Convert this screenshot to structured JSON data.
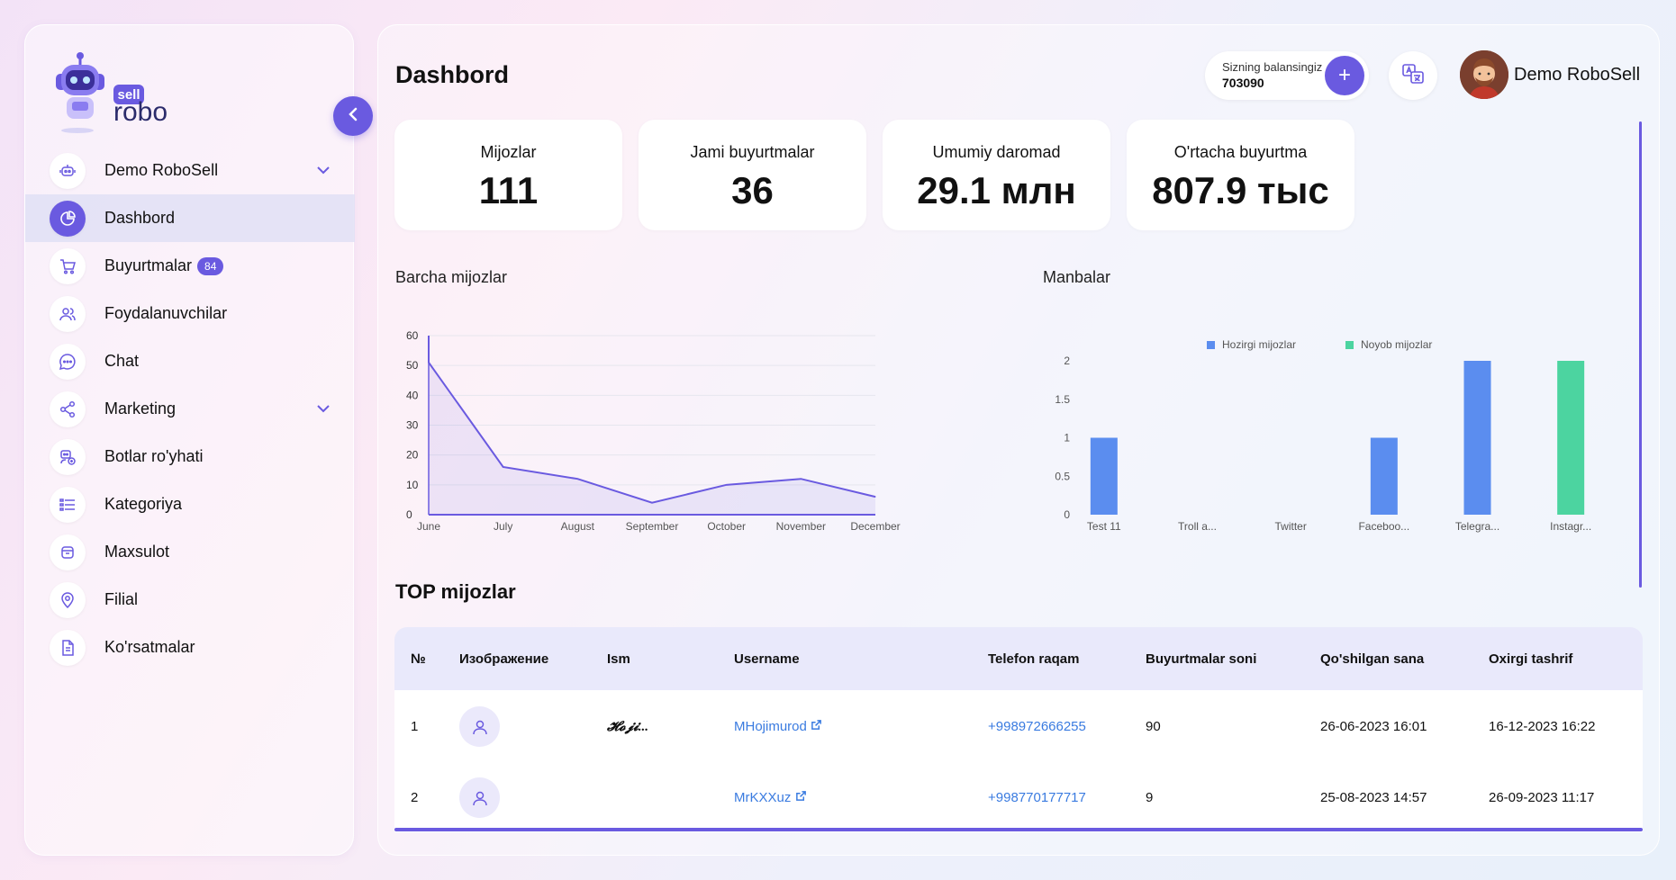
{
  "brand": {
    "logo_small": "sell",
    "logo_big": "robo"
  },
  "sidebar": {
    "items": [
      {
        "label": "Demo RoboSell",
        "icon": "robot-icon",
        "has_chevron": true
      },
      {
        "label": "Dashbord",
        "icon": "pie-chart-icon",
        "active": true
      },
      {
        "label": "Buyurtmalar",
        "icon": "cart-icon",
        "badge": "84"
      },
      {
        "label": "Foydalanuvchilar",
        "icon": "users-icon"
      },
      {
        "label": "Chat",
        "icon": "chat-icon"
      },
      {
        "label": "Marketing",
        "icon": "share-icon",
        "has_chevron": true
      },
      {
        "label": "Botlar ro'yhati",
        "icon": "bot-list-icon"
      },
      {
        "label": "Kategoriya",
        "icon": "list-icon"
      },
      {
        "label": "Maxsulot",
        "icon": "box-icon"
      },
      {
        "label": "Filial",
        "icon": "location-icon"
      },
      {
        "label": "Ko'rsatmalar",
        "icon": "document-icon"
      }
    ]
  },
  "header": {
    "title": "Dashbord",
    "balance_label": "Sizning balansingiz",
    "balance_value": "703090",
    "add_label": "+",
    "user_name": "Demo RoboSell"
  },
  "stats": [
    {
      "label": "Mijozlar",
      "value": "111"
    },
    {
      "label": "Jami buyurtmalar",
      "value": "36"
    },
    {
      "label": "Umumiy daromad",
      "value": "29.1 млн"
    },
    {
      "label": "O'rtacha buyurtma",
      "value": "807.9 тыс"
    }
  ],
  "chart_data": [
    {
      "type": "area",
      "title": "Barcha mijozlar",
      "x": [
        "June",
        "July",
        "August",
        "September",
        "October",
        "November",
        "December"
      ],
      "values": [
        51,
        16,
        12,
        4,
        10,
        12,
        6
      ],
      "first_point_peak": 60,
      "ylim": [
        0,
        60
      ],
      "yticks": [
        "0",
        "10",
        "20",
        "30",
        "40",
        "50",
        "60"
      ],
      "color": "#6a5ae0",
      "grid": true
    },
    {
      "type": "bar",
      "title": "Manbalar",
      "categories": [
        "Test 11",
        "Troll a...",
        "Twitter",
        "Faceboo...",
        "Telegra...",
        "Instagr..."
      ],
      "series": [
        {
          "name": "Hozirgi mijozlar",
          "color": "#5b8def",
          "values": [
            1,
            0,
            0,
            1,
            2,
            0
          ]
        },
        {
          "name": "Noyob mijozlar",
          "color": "#4cd4a0",
          "values": [
            0,
            0,
            0,
            0,
            0,
            2
          ]
        }
      ],
      "ylim": [
        0,
        2
      ],
      "yticks": [
        "0",
        "0.5",
        "1",
        "1.5",
        "2"
      ],
      "legend": "top"
    }
  ],
  "top_clients": {
    "title": "TOP mijozlar",
    "columns": [
      "№",
      "Изображение",
      "Ism",
      "Username",
      "Telefon raqam",
      "Buyurtmalar soni",
      "Qo'shilgan sana",
      "Oxirgi tashrif"
    ],
    "rows": [
      {
        "n": "1",
        "name": "𝓗𝓸𝓳𝓲...",
        "username": "MHojimurod",
        "phone": "+998972666255",
        "orders": "90",
        "joined": "26-06-2023 16:01",
        "last": "16-12-2023 16:22"
      },
      {
        "n": "2",
        "name": "",
        "username": "MrKXXuz",
        "phone": "+998770177717",
        "orders": "9",
        "joined": "25-08-2023 14:57",
        "last": "26-09-2023 11:17"
      }
    ]
  }
}
